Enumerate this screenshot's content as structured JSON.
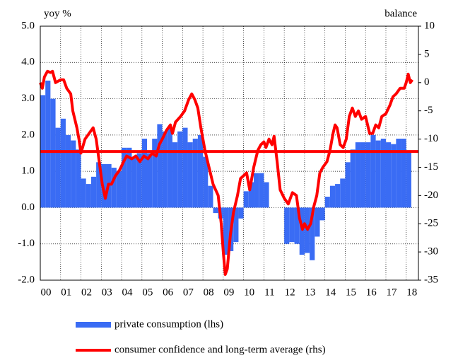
{
  "chart_data": {
    "type": "bar",
    "y_label": "yoy %",
    "y2_label": "balance",
    "xlim": [
      2000,
      2018.6
    ],
    "xticks": [
      {
        "value": 2000,
        "label": "00"
      },
      {
        "value": 2001,
        "label": "01"
      },
      {
        "value": 2002,
        "label": "02"
      },
      {
        "value": 2003,
        "label": "03"
      },
      {
        "value": 2004,
        "label": "04"
      },
      {
        "value": 2005,
        "label": "05"
      },
      {
        "value": 2006,
        "label": "06"
      },
      {
        "value": 2007,
        "label": "07"
      },
      {
        "value": 2008,
        "label": "08"
      },
      {
        "value": 2009,
        "label": "09"
      },
      {
        "value": 2010,
        "label": "10"
      },
      {
        "value": 2011,
        "label": "11"
      },
      {
        "value": 2012,
        "label": "12"
      },
      {
        "value": 2013,
        "label": "13"
      },
      {
        "value": 2014,
        "label": "14"
      },
      {
        "value": 2015,
        "label": "15"
      },
      {
        "value": 2016,
        "label": "16"
      },
      {
        "value": 2017,
        "label": "17"
      },
      {
        "value": 2018,
        "label": "18"
      }
    ],
    "ylim": [
      -2,
      5
    ],
    "yticks": [
      {
        "value": 5,
        "label": "5.0"
      },
      {
        "value": 4,
        "label": "4.0"
      },
      {
        "value": 3,
        "label": "3.0"
      },
      {
        "value": 2,
        "label": "2.0"
      },
      {
        "value": 1,
        "label": "1.0"
      },
      {
        "value": 0,
        "label": "0.0"
      },
      {
        "value": -1,
        "label": "-1.0"
      },
      {
        "value": -2,
        "label": "-2.0"
      }
    ],
    "y2lim": [
      -35,
      10
    ],
    "y2ticks": [
      10,
      5,
      0,
      -5,
      -10,
      -15,
      -20,
      -25,
      -30,
      -35
    ],
    "grid": true,
    "series": [
      {
        "name": "private consumption (lhs)",
        "type": "bar",
        "color": "#3a6cf4",
        "x": [
          2000.125,
          2000.375,
          2000.625,
          2000.875,
          2001.125,
          2001.375,
          2001.625,
          2001.875,
          2002.125,
          2002.375,
          2002.625,
          2002.875,
          2003.125,
          2003.375,
          2003.625,
          2003.875,
          2004.125,
          2004.375,
          2004.625,
          2004.875,
          2005.125,
          2005.375,
          2005.625,
          2005.875,
          2006.125,
          2006.375,
          2006.625,
          2006.875,
          2007.125,
          2007.375,
          2007.625,
          2007.875,
          2008.125,
          2008.375,
          2008.625,
          2008.875,
          2009.125,
          2009.375,
          2009.625,
          2009.875,
          2010.125,
          2010.375,
          2010.625,
          2010.875,
          2011.125,
          2011.375,
          2011.625,
          2011.875,
          2012.125,
          2012.375,
          2012.625,
          2012.875,
          2013.125,
          2013.375,
          2013.625,
          2013.875,
          2014.125,
          2014.375,
          2014.625,
          2014.875,
          2015.125,
          2015.375,
          2015.625,
          2015.875,
          2016.125,
          2016.375,
          2016.625,
          2016.875,
          2017.125,
          2017.375,
          2017.625,
          2017.875,
          2018.125
        ],
        "values": [
          3.1,
          3.5,
          3.0,
          2.2,
          2.45,
          2.0,
          1.85,
          1.6,
          0.8,
          0.65,
          0.85,
          1.25,
          1.2,
          1.2,
          1.1,
          1.0,
          1.65,
          1.65,
          1.4,
          1.5,
          1.9,
          1.5,
          1.9,
          2.3,
          2.1,
          2.2,
          1.8,
          2.1,
          2.2,
          1.8,
          1.9,
          2.0,
          1.4,
          0.6,
          -0.15,
          -0.3,
          -1.3,
          -1.2,
          -0.95,
          -0.3,
          0.45,
          0.7,
          0.95,
          0.95,
          0.7,
          0.0,
          0.0,
          0.0,
          -1.0,
          -0.95,
          -1.0,
          -1.3,
          -1.25,
          -1.45,
          -0.8,
          -0.35,
          0.3,
          0.6,
          0.65,
          0.8,
          1.25,
          1.6,
          1.8,
          1.8,
          1.8,
          2.0,
          1.85,
          1.9,
          1.8,
          1.75,
          1.9,
          1.9,
          1.55
        ]
      },
      {
        "name": "consumer confidence and long-term average (rhs)",
        "type": "line",
        "axis": "y2",
        "color": "#ff0000",
        "average": -12.2,
        "x": [
          2000.0,
          2000.1,
          2000.2,
          2000.35,
          2000.5,
          2000.6,
          2000.75,
          2001.0,
          2001.15,
          2001.3,
          2001.5,
          2001.6,
          2001.8,
          2001.9,
          2002.0,
          2002.2,
          2002.4,
          2002.6,
          2002.75,
          2002.9,
          2003.05,
          2003.2,
          2003.35,
          2003.5,
          2003.7,
          2003.9,
          2004.1,
          2004.25,
          2004.5,
          2004.7,
          2004.9,
          2005.1,
          2005.3,
          2005.5,
          2005.7,
          2005.85,
          2006.0,
          2006.2,
          2006.4,
          2006.5,
          2006.65,
          2006.9,
          2007.1,
          2007.3,
          2007.45,
          2007.6,
          2007.75,
          2007.9,
          2008.1,
          2008.3,
          2008.5,
          2008.75,
          2008.9,
          2009.0,
          2009.1,
          2009.2,
          2009.35,
          2009.5,
          2009.7,
          2009.85,
          2010.0,
          2010.15,
          2010.3,
          2010.5,
          2010.7,
          2010.85,
          2011.0,
          2011.1,
          2011.25,
          2011.4,
          2011.5,
          2011.65,
          2011.8,
          2012.0,
          2012.2,
          2012.4,
          2012.6,
          2012.75,
          2012.9,
          2013.0,
          2013.15,
          2013.3,
          2013.45,
          2013.6,
          2013.75,
          2013.9,
          2014.1,
          2014.25,
          2014.4,
          2014.5,
          2014.6,
          2014.75,
          2014.9,
          2015.05,
          2015.2,
          2015.35,
          2015.5,
          2015.65,
          2015.8,
          2016.0,
          2016.2,
          2016.35,
          2016.5,
          2016.65,
          2016.8,
          2017.0,
          2017.2,
          2017.35,
          2017.5,
          2017.7,
          2017.9,
          2018.0,
          2018.1,
          2018.2,
          2018.3
        ],
        "values": [
          0,
          -1,
          1,
          2,
          1.8,
          2,
          0,
          0.5,
          0.5,
          -1,
          -2,
          -5,
          -8,
          -10,
          -12.5,
          -10,
          -9,
          -8,
          -10,
          -14,
          -18,
          -20.5,
          -18,
          -18,
          -16.5,
          -15.5,
          -14,
          -13,
          -13.5,
          -13,
          -14,
          -13,
          -13.5,
          -12.5,
          -13,
          -11,
          -10,
          -8.5,
          -7.5,
          -9,
          -7,
          -6,
          -5,
          -3,
          -2,
          -3,
          -4.5,
          -8,
          -12,
          -15,
          -18,
          -20,
          -25,
          -30,
          -34,
          -33,
          -27,
          -23,
          -20,
          -17,
          -16.5,
          -16,
          -19,
          -15,
          -12,
          -11,
          -10.5,
          -11.5,
          -10,
          -11,
          -9.5,
          -14,
          -19,
          -20.5,
          -21.5,
          -19.5,
          -20,
          -24,
          -26,
          -25,
          -26,
          -25,
          -22,
          -20,
          -16,
          -15,
          -14,
          -12,
          -9,
          -7.5,
          -8,
          -11,
          -11.5,
          -10,
          -6,
          -4.5,
          -6,
          -5,
          -6.5,
          -6,
          -9,
          -9,
          -7.5,
          -8,
          -6,
          -5.5,
          -4,
          -2.5,
          -2,
          -1,
          -1,
          0,
          1.5,
          0,
          0.5
        ]
      }
    ]
  }
}
